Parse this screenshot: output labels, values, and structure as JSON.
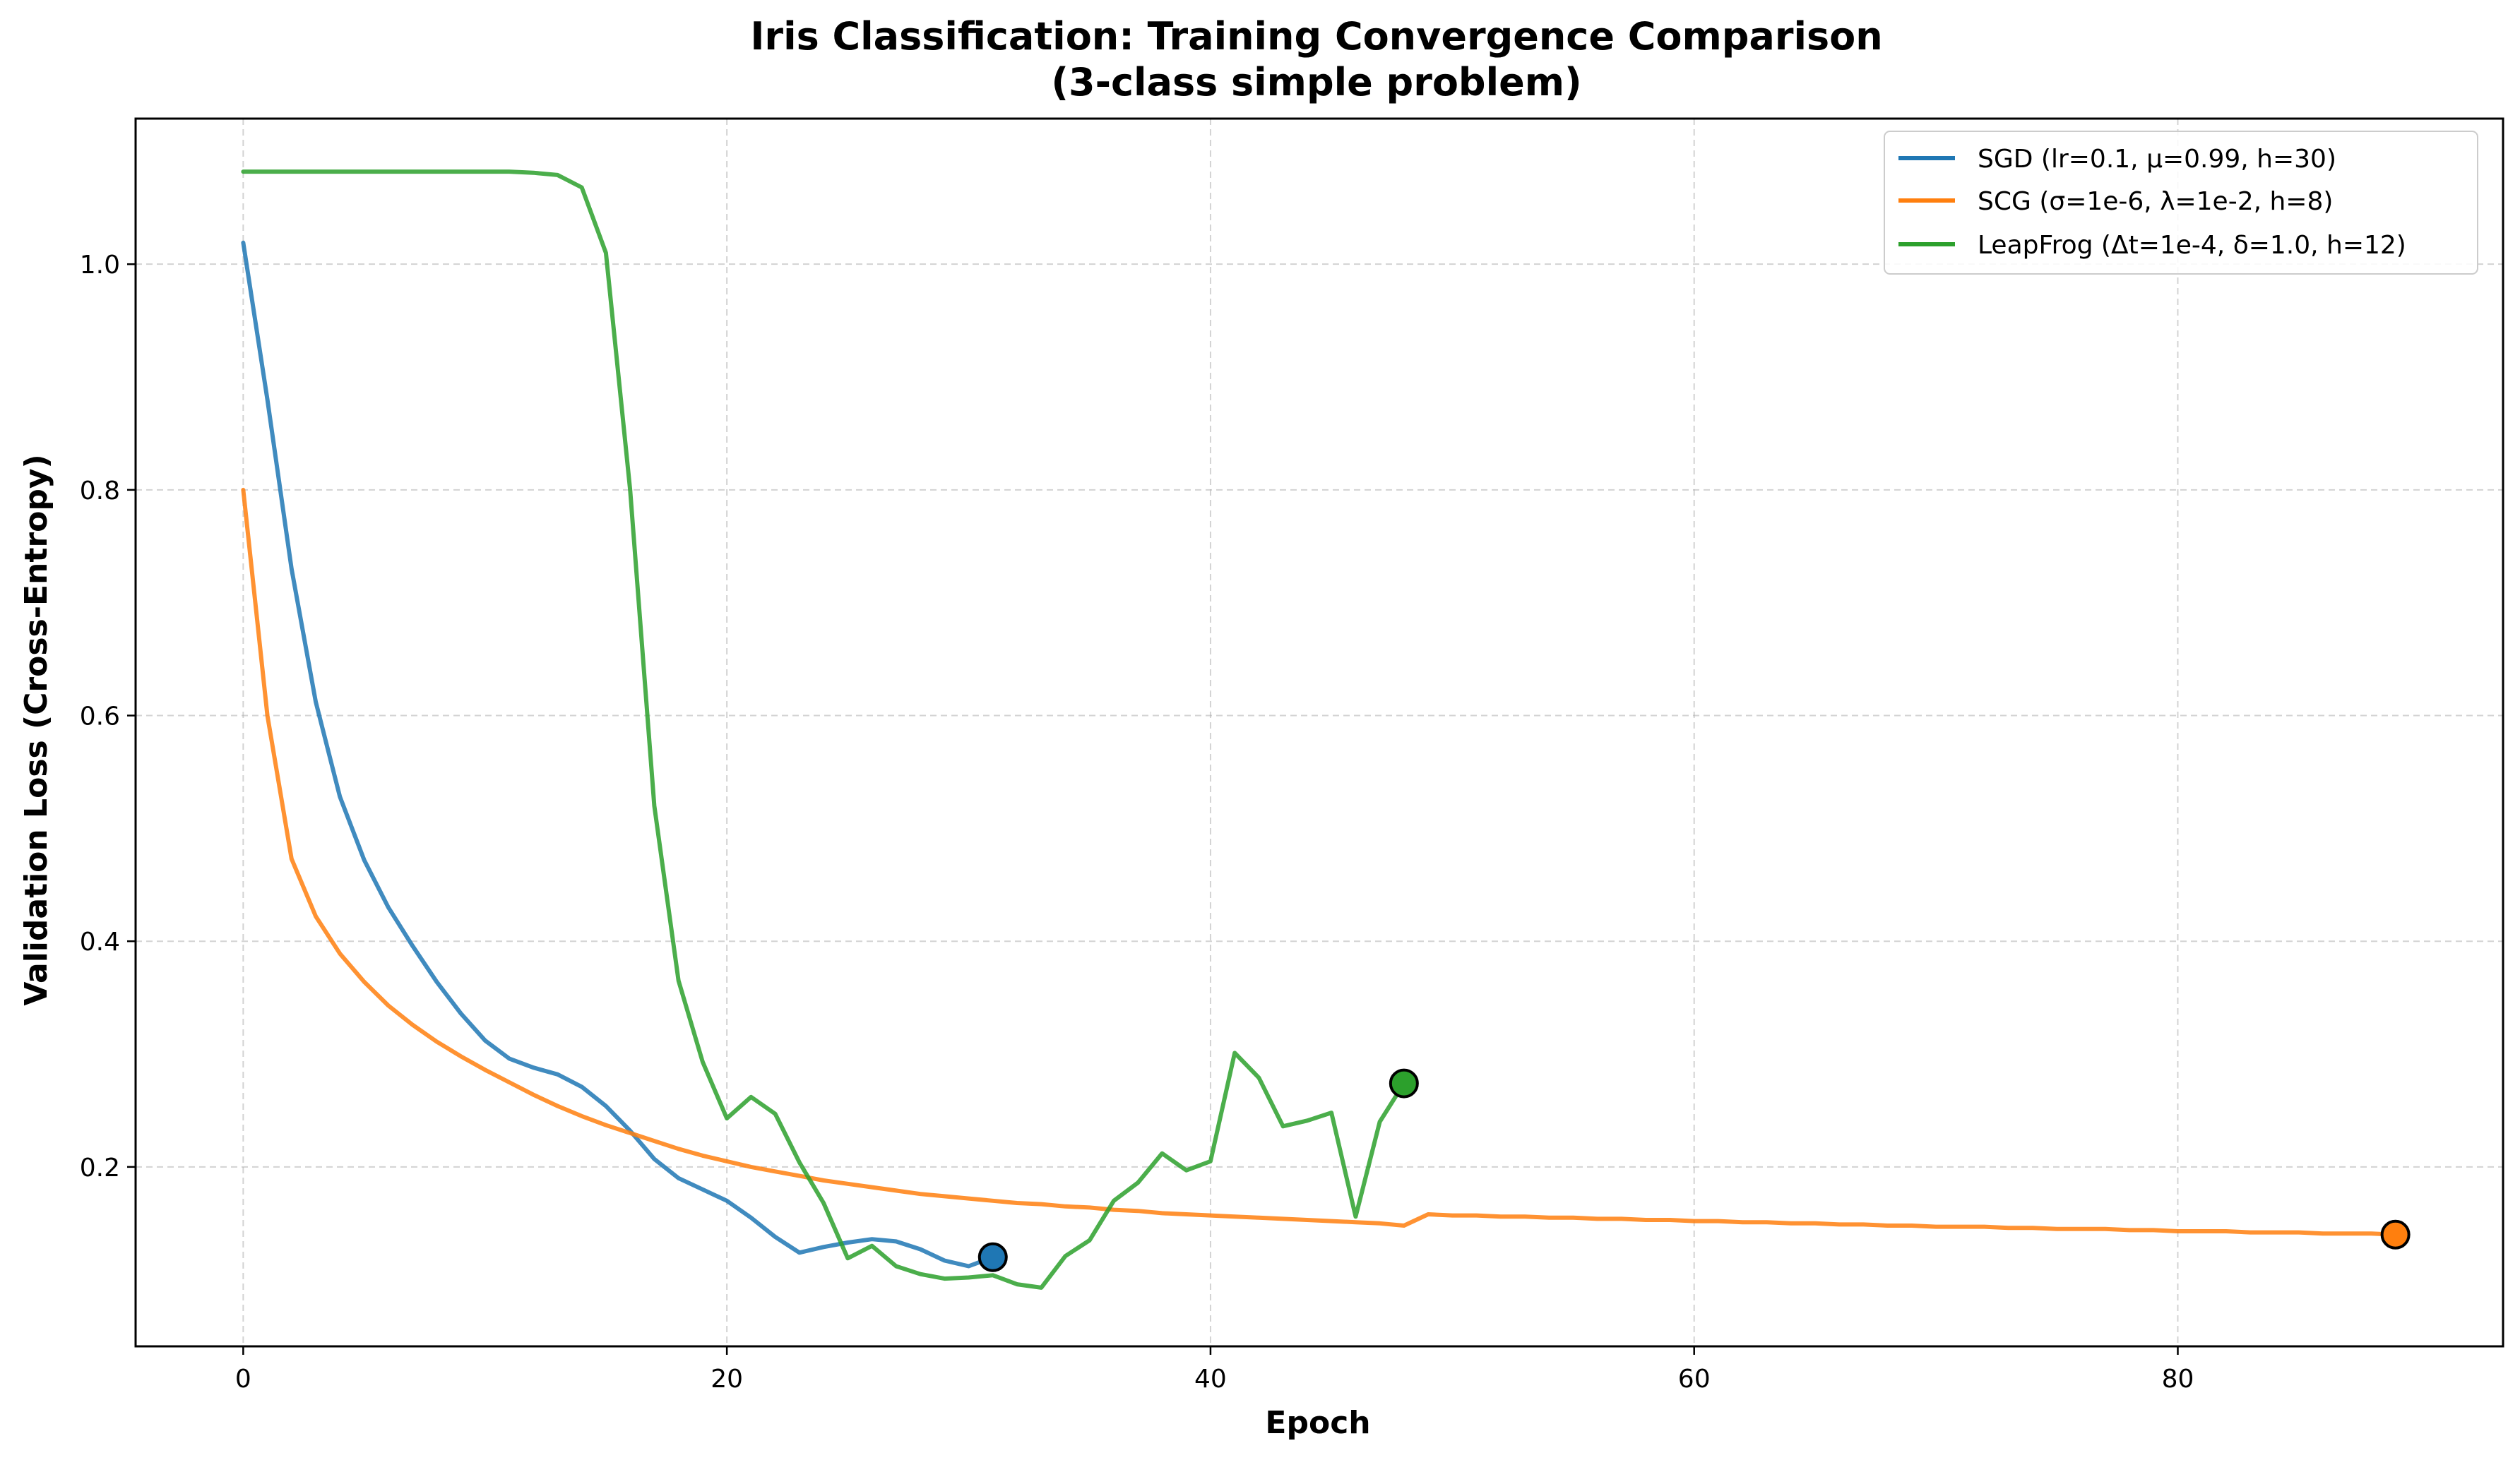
{
  "chart_data": {
    "type": "line",
    "title": "Iris Classification: Training Convergence Comparison",
    "subtitle": "(3-class simple problem)",
    "xlabel": "Epoch",
    "ylabel": "Validation Loss (Cross-Entropy)",
    "xlim": [
      -4.45,
      93.45
    ],
    "ylim": [
      0.041,
      1.129
    ],
    "xticks": [
      0,
      20,
      40,
      60,
      80
    ],
    "yticks": [
      0.2,
      0.4,
      0.6,
      0.8,
      1.0
    ],
    "xtick_labels": [
      "0",
      "20",
      "40",
      "60",
      "80"
    ],
    "ytick_labels": [
      "0.2",
      "0.4",
      "0.6",
      "0.8",
      "1.0"
    ],
    "grid": true,
    "legend_position": "top-right",
    "series": [
      {
        "name": "SGD (lr=0.1, μ=0.99, h=30)",
        "color": "#1f77b4",
        "x": [
          0,
          1,
          2,
          3,
          4,
          5,
          6,
          7,
          8,
          9,
          10,
          11,
          12,
          13,
          14,
          15,
          16,
          17,
          18,
          19,
          20,
          21,
          22,
          23,
          24,
          25,
          26,
          27,
          28,
          29,
          30,
          31
        ],
        "values": [
          1.019,
          0.88,
          0.73,
          0.612,
          0.528,
          0.472,
          0.43,
          0.396,
          0.364,
          0.336,
          0.312,
          0.296,
          0.288,
          0.282,
          0.271,
          0.254,
          0.232,
          0.207,
          0.19,
          0.18,
          0.17,
          0.155,
          0.138,
          0.124,
          0.129,
          0.133,
          0.136,
          0.134,
          0.127,
          0.117,
          0.112,
          0.12
        ],
        "marker": {
          "x": 31,
          "y": 0.12
        }
      },
      {
        "name": "SCG (σ=1e-6, λ=1e-2, h=8)",
        "color": "#ff7f0e",
        "x": [
          0,
          1,
          2,
          3,
          4,
          5,
          6,
          7,
          8,
          9,
          10,
          11,
          12,
          13,
          14,
          15,
          16,
          17,
          18,
          19,
          20,
          21,
          22,
          23,
          24,
          25,
          26,
          27,
          28,
          29,
          30,
          31,
          32,
          33,
          34,
          35,
          36,
          37,
          38,
          39,
          40,
          41,
          42,
          43,
          44,
          45,
          46,
          47,
          48,
          49,
          50,
          51,
          52,
          53,
          54,
          55,
          56,
          57,
          58,
          59,
          60,
          61,
          62,
          63,
          64,
          65,
          66,
          67,
          68,
          69,
          70,
          71,
          72,
          73,
          74,
          75,
          76,
          77,
          78,
          79,
          80,
          81,
          82,
          83,
          84,
          85,
          86,
          87,
          88,
          89
        ],
        "values": [
          0.8,
          0.6,
          0.473,
          0.422,
          0.389,
          0.364,
          0.343,
          0.326,
          0.311,
          0.298,
          0.286,
          0.275,
          0.264,
          0.254,
          0.245,
          0.237,
          0.23,
          0.223,
          0.216,
          0.21,
          0.205,
          0.2,
          0.196,
          0.192,
          0.188,
          0.185,
          0.182,
          0.179,
          0.176,
          0.174,
          0.172,
          0.17,
          0.168,
          0.167,
          0.165,
          0.164,
          0.162,
          0.161,
          0.159,
          0.158,
          0.157,
          0.156,
          0.155,
          0.154,
          0.153,
          0.152,
          0.151,
          0.15,
          0.148,
          0.158,
          0.157,
          0.157,
          0.156,
          0.156,
          0.155,
          0.155,
          0.154,
          0.154,
          0.153,
          0.153,
          0.152,
          0.152,
          0.151,
          0.151,
          0.15,
          0.15,
          0.149,
          0.149,
          0.148,
          0.148,
          0.147,
          0.147,
          0.147,
          0.146,
          0.146,
          0.145,
          0.145,
          0.145,
          0.144,
          0.144,
          0.143,
          0.143,
          0.143,
          0.142,
          0.142,
          0.142,
          0.141,
          0.141,
          0.141,
          0.14
        ],
        "marker": {
          "x": 89,
          "y": 0.14
        }
      },
      {
        "name": "LeapFrog (Δt=1e-4, δ=1.0, h=12)",
        "color": "#2ca02c",
        "x": [
          0,
          1,
          2,
          3,
          4,
          5,
          6,
          7,
          8,
          9,
          10,
          11,
          12,
          13,
          14,
          15,
          16,
          17,
          18,
          19,
          20,
          21,
          22,
          23,
          24,
          25,
          26,
          27,
          28,
          29,
          30,
          31,
          32,
          33,
          34,
          35,
          36,
          37,
          38,
          39,
          40,
          41,
          42,
          43,
          44,
          45,
          46,
          47,
          48
        ],
        "values": [
          1.082,
          1.082,
          1.082,
          1.082,
          1.082,
          1.082,
          1.082,
          1.082,
          1.082,
          1.082,
          1.082,
          1.082,
          1.081,
          1.079,
          1.068,
          1.01,
          0.8,
          0.52,
          0.365,
          0.293,
          0.243,
          0.262,
          0.247,
          0.204,
          0.168,
          0.119,
          0.13,
          0.112,
          0.105,
          0.101,
          0.102,
          0.104,
          0.096,
          0.093,
          0.121,
          0.135,
          0.17,
          0.186,
          0.212,
          0.197,
          0.205,
          0.301,
          0.279,
          0.236,
          0.241,
          0.248,
          0.156,
          0.24,
          0.274
        ],
        "marker": {
          "x": 48,
          "y": 0.274
        }
      }
    ]
  }
}
